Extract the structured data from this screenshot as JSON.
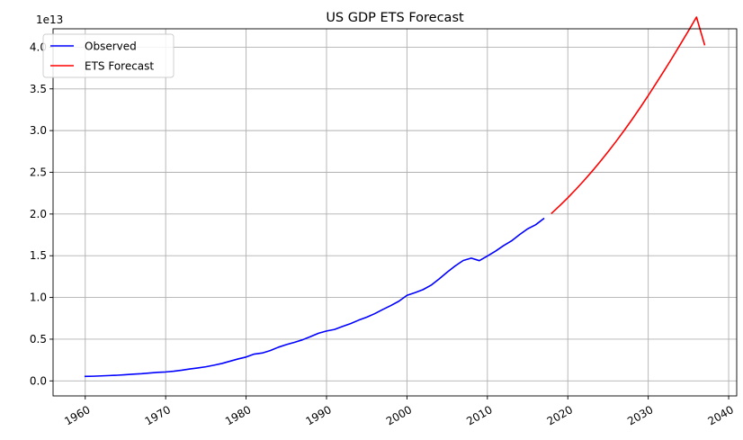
{
  "chart_data": {
    "type": "line",
    "title": "US GDP ETS Forecast",
    "xlabel": "",
    "ylabel": "",
    "y_offset_label": "1e13",
    "xlim": [
      1956,
      2041
    ],
    "ylim": [
      -0.18,
      4.22
    ],
    "y_scale_multiplier": 10000000000000.0,
    "x_ticks": [
      1960,
      1970,
      1980,
      1990,
      2000,
      2010,
      2020,
      2030,
      2040
    ],
    "x_tick_labels": [
      "1960",
      "1970",
      "1980",
      "1990",
      "2000",
      "2010",
      "2020",
      "2030",
      "2040"
    ],
    "y_ticks": [
      0.0,
      0.5,
      1.0,
      1.5,
      2.0,
      2.5,
      3.0,
      3.5,
      4.0
    ],
    "y_tick_labels": [
      "0.0",
      "0.5",
      "1.0",
      "1.5",
      "2.0",
      "2.5",
      "3.0",
      "3.5",
      "4.0"
    ],
    "grid": true,
    "legend_position": "upper-left",
    "series": [
      {
        "name": "Observed",
        "color": "#0000ff",
        "x": [
          1960,
          1961,
          1962,
          1963,
          1964,
          1965,
          1966,
          1967,
          1968,
          1969,
          1970,
          1971,
          1972,
          1973,
          1974,
          1975,
          1976,
          1977,
          1978,
          1979,
          1980,
          1981,
          1982,
          1983,
          1984,
          1985,
          1986,
          1987,
          1988,
          1989,
          1990,
          1991,
          1992,
          1993,
          1994,
          1995,
          1996,
          1997,
          1998,
          1999,
          2000,
          2001,
          2002,
          2003,
          2004,
          2005,
          2006,
          2007,
          2008,
          2009,
          2010,
          2011,
          2012,
          2013,
          2014,
          2015,
          2016,
          2017
        ],
        "y": [
          0.054,
          0.056,
          0.06,
          0.064,
          0.068,
          0.074,
          0.081,
          0.086,
          0.094,
          0.102,
          0.107,
          0.116,
          0.128,
          0.143,
          0.155,
          0.169,
          0.188,
          0.209,
          0.236,
          0.263,
          0.286,
          0.321,
          0.334,
          0.363,
          0.403,
          0.435,
          0.462,
          0.492,
          0.53,
          0.571,
          0.598,
          0.617,
          0.653,
          0.687,
          0.728,
          0.764,
          0.806,
          0.856,
          0.903,
          0.955,
          1.025,
          1.058,
          1.094,
          1.147,
          1.222,
          1.303,
          1.378,
          1.443,
          1.471,
          1.441,
          1.496,
          1.554,
          1.62,
          1.678,
          1.753,
          1.822,
          1.871,
          1.945
        ]
      },
      {
        "name": "ETS Forecast",
        "color": "#ff0000",
        "x": [
          2018,
          2019,
          2020,
          2021,
          2022,
          2023,
          2024,
          2025,
          2026,
          2027,
          2028,
          2029,
          2030,
          2031,
          2032,
          2033,
          2034,
          2035,
          2036,
          2037
        ],
        "y": [
          2.01,
          2.1,
          2.195,
          2.295,
          2.4,
          2.51,
          2.625,
          2.745,
          2.87,
          3.0,
          3.135,
          3.275,
          3.42,
          3.57,
          3.72,
          3.875,
          4.035,
          4.195,
          4.36,
          4.03
        ]
      }
    ]
  }
}
